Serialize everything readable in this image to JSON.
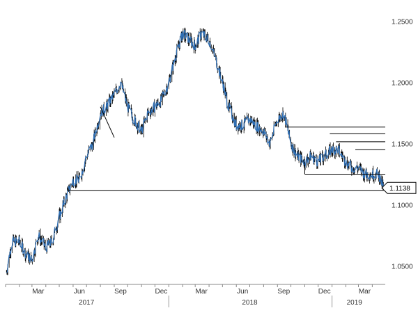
{
  "chart_data": {
    "type": "line",
    "title": "",
    "xlabel": "",
    "ylabel": "",
    "x_range": [
      "2017-01-01",
      "2019-04-30"
    ],
    "ylim": [
      1.035,
      1.265
    ],
    "y_axis_position": "right",
    "grid": false,
    "y_ticks": [
      {
        "value": 1.25,
        "label": "1.2500"
      },
      {
        "value": 1.2,
        "label": "1.2000"
      },
      {
        "value": 1.15,
        "label": "1.1500"
      },
      {
        "value": 1.1,
        "label": "1.1000"
      },
      {
        "value": 1.05,
        "label": "1.0500"
      }
    ],
    "x_month_ticks": [
      {
        "date": "2017-03-15",
        "label": "Mar"
      },
      {
        "date": "2017-06-15",
        "label": "Jun"
      },
      {
        "date": "2017-09-15",
        "label": "Sep"
      },
      {
        "date": "2017-12-15",
        "label": "Dec"
      },
      {
        "date": "2018-03-15",
        "label": "Mar"
      },
      {
        "date": "2018-06-15",
        "label": "Jun"
      },
      {
        "date": "2018-09-15",
        "label": "Sep"
      },
      {
        "date": "2018-12-15",
        "label": "Dec"
      },
      {
        "date": "2019-03-15",
        "label": "Mar"
      }
    ],
    "x_year_labels": [
      {
        "date": "2017-07-01",
        "label": "2017"
      },
      {
        "date": "2018-07-01",
        "label": "2018"
      },
      {
        "date": "2019-02-20",
        "label": "2019"
      }
    ],
    "year_dividers": [
      "2018-01-01",
      "2019-01-01"
    ],
    "colors": {
      "series": "#2f6fb5",
      "bars": "#000000",
      "lines": "#000000"
    },
    "series": [
      {
        "x": [
          "2017-01-03",
          "2017-01-15",
          "2017-02-01",
          "2017-02-15",
          "2017-03-01",
          "2017-03-15",
          "2017-04-01",
          "2017-04-15",
          "2017-05-01",
          "2017-05-15",
          "2017-06-01",
          "2017-06-15",
          "2017-07-01",
          "2017-07-15",
          "2017-08-01",
          "2017-08-15",
          "2017-09-01",
          "2017-09-15",
          "2017-10-01",
          "2017-10-15",
          "2017-11-01",
          "2017-11-15",
          "2017-12-01",
          "2017-12-15",
          "2018-01-01",
          "2018-01-15",
          "2018-02-01",
          "2018-02-15",
          "2018-03-01",
          "2018-03-15",
          "2018-04-01",
          "2018-04-15",
          "2018-05-01",
          "2018-05-15",
          "2018-06-01",
          "2018-06-15",
          "2018-07-01",
          "2018-07-15",
          "2018-08-01",
          "2018-08-15",
          "2018-09-01",
          "2018-09-15",
          "2018-10-01",
          "2018-10-15",
          "2018-11-01",
          "2018-11-15",
          "2018-12-01",
          "2018-12-15",
          "2019-01-01",
          "2019-01-15",
          "2019-02-01",
          "2019-02-15",
          "2019-03-01",
          "2019-03-15",
          "2019-04-01",
          "2019-04-15",
          "2019-04-26"
        ],
        "values": [
          1.045,
          1.07,
          1.07,
          1.06,
          1.055,
          1.075,
          1.065,
          1.07,
          1.09,
          1.105,
          1.12,
          1.12,
          1.14,
          1.15,
          1.175,
          1.18,
          1.19,
          1.2,
          1.18,
          1.17,
          1.16,
          1.175,
          1.18,
          1.185,
          1.2,
          1.22,
          1.24,
          1.235,
          1.23,
          1.24,
          1.235,
          1.22,
          1.2,
          1.18,
          1.165,
          1.165,
          1.17,
          1.165,
          1.16,
          1.15,
          1.17,
          1.175,
          1.15,
          1.14,
          1.135,
          1.14,
          1.135,
          1.14,
          1.145,
          1.145,
          1.135,
          1.13,
          1.13,
          1.125,
          1.125,
          1.125,
          1.1138
        ]
      }
    ],
    "annotations": {
      "horizontal_levels": [
        {
          "value": 1.1635,
          "from": "2018-09-18",
          "to": "2019-04-30"
        },
        {
          "value": 1.158,
          "from": "2018-12-27",
          "to": "2019-04-30"
        },
        {
          "value": 1.1515,
          "from": "2019-01-10",
          "to": "2019-04-30"
        },
        {
          "value": 1.145,
          "from": "2019-02-22",
          "to": "2019-04-30"
        },
        {
          "value": 1.125,
          "from": "2018-11-01",
          "to": "2019-04-30"
        },
        {
          "value": 1.1118,
          "from": "2017-05-20",
          "to": "2019-04-30"
        }
      ],
      "trendline": {
        "x": [
          "2017-08-01",
          "2017-09-01"
        ],
        "y": [
          1.18,
          1.155
        ]
      },
      "short_ticks": [
        {
          "date": "2018-11-01",
          "from_value": 1.135,
          "to_value": 1.125
        },
        {
          "date": "2017-05-20",
          "from_value": 1.115,
          "to_value": 1.1118
        }
      ],
      "last_value": {
        "value": 1.1138,
        "label": "1.1138"
      }
    }
  }
}
